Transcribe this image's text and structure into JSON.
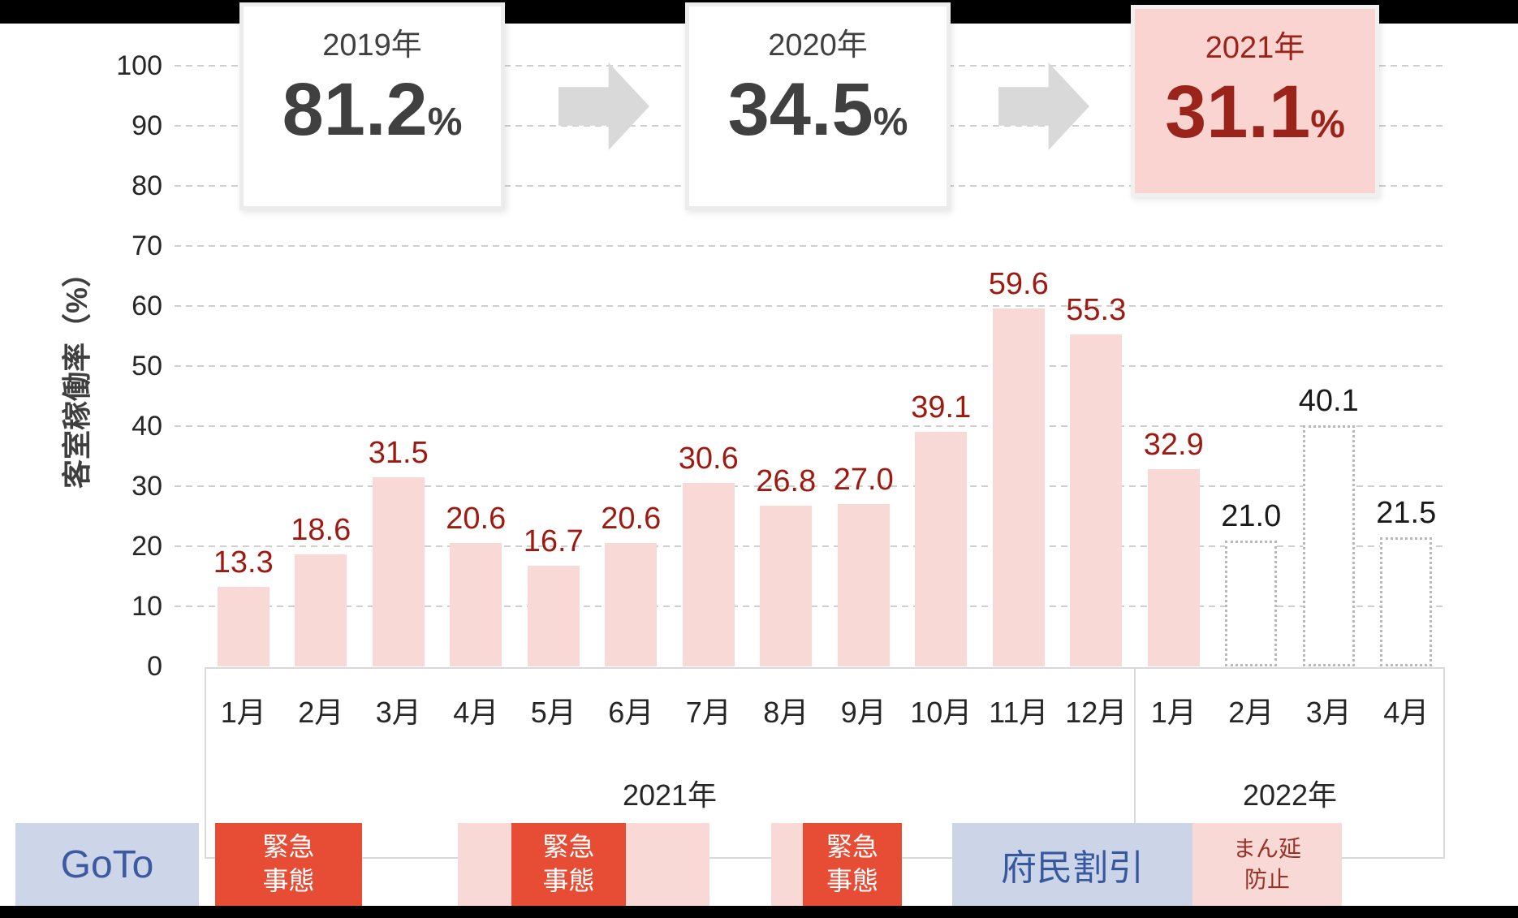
{
  "summary_boxes": [
    {
      "year": "2019年",
      "value": "81.2",
      "unit": "%",
      "variant": "plain"
    },
    {
      "year": "2020年",
      "value": "34.5",
      "unit": "%",
      "variant": "plain"
    },
    {
      "year": "2021年",
      "value": "31.1",
      "unit": "%",
      "variant": "highlight"
    }
  ],
  "y_axis": {
    "title": "客室稼働率（%）",
    "ticks": [
      "0",
      "10",
      "20",
      "30",
      "40",
      "50",
      "60",
      "70",
      "80",
      "90",
      "100"
    ]
  },
  "x_axis": {
    "groups": [
      {
        "label": "2021年",
        "months": [
          "1月",
          "2月",
          "3月",
          "4月",
          "5月",
          "6月",
          "7月",
          "8月",
          "9月",
          "10月",
          "11月",
          "12月"
        ]
      },
      {
        "label": "2022年",
        "months": [
          "1月",
          "2月",
          "3月",
          "4月"
        ]
      }
    ]
  },
  "chart_data": {
    "type": "bar",
    "categories": [
      "2021年1月",
      "2021年2月",
      "2021年3月",
      "2021年4月",
      "2021年5月",
      "2021年6月",
      "2021年7月",
      "2021年8月",
      "2021年9月",
      "2021年10月",
      "2021年11月",
      "2021年12月",
      "2022年1月",
      "2022年2月",
      "2022年3月",
      "2022年4月"
    ],
    "values": [
      13.3,
      18.6,
      31.5,
      20.6,
      16.7,
      20.6,
      30.6,
      26.8,
      27.0,
      39.1,
      59.6,
      55.3,
      32.9,
      21.0,
      40.1,
      21.5
    ],
    "value_labels": [
      "13.3",
      "18.6",
      "31.5",
      "20.6",
      "16.7",
      "20.6",
      "30.6",
      "26.8",
      "27.0",
      "39.1",
      "59.6",
      "55.3",
      "32.9",
      "21.0",
      "40.1",
      "21.5"
    ],
    "bar_styles": [
      "solid",
      "solid",
      "solid",
      "solid",
      "solid",
      "solid",
      "solid",
      "solid",
      "solid",
      "solid",
      "solid",
      "solid",
      "solid",
      "outline",
      "outline",
      "outline"
    ],
    "label_colors": [
      "red",
      "red",
      "red",
      "red",
      "red",
      "red",
      "red",
      "red",
      "red",
      "red",
      "red",
      "red",
      "red",
      "black",
      "black",
      "black"
    ],
    "ylabel": "客室稼働率（%）",
    "ylim": [
      0,
      100
    ],
    "grid": "horizontal dashed, every 10",
    "legend": "none",
    "yearly_summary": [
      {
        "label": "2019年",
        "value": 81.2
      },
      {
        "label": "2020年",
        "value": 34.5
      },
      {
        "label": "2021年",
        "value": 31.1
      }
    ]
  },
  "annotations": [
    {
      "id": "goto",
      "label": "GoTo",
      "style": "goto"
    },
    {
      "id": "emergency-1",
      "label": "緊急\n事態",
      "style": "red"
    },
    {
      "id": "pink-strip-1",
      "label": "",
      "style": "pink"
    },
    {
      "id": "emergency-2",
      "label": "緊急\n事態",
      "style": "red"
    },
    {
      "id": "pink-strip-2",
      "label": "",
      "style": "pink"
    },
    {
      "id": "emergency-3",
      "label": "緊急\n事態",
      "style": "red"
    },
    {
      "id": "fumin-waribiki",
      "label": "府民割引",
      "style": "blue"
    },
    {
      "id": "manen-boshi",
      "label": "まん延\n防止",
      "style": "pink-text"
    }
  ],
  "colors": {
    "bar_fill": "#f8d9d5",
    "bar_label": "#9e1a10",
    "outline_bar_border": "#b8b8b8",
    "forecast_label": "#1a1a1a",
    "emergency_box": "#e74c35",
    "pink_strip": "#f8d9d5",
    "goto_box": "#cdd5e9",
    "discount_box": "#ccd4e8",
    "blue_text": "#35589e",
    "manbo_text": "#993226",
    "highlight_bg": "#f9d4d0",
    "highlight_text": "#9a241a",
    "summary_text": "#404040",
    "arrow": "#d9d9d9",
    "gridline": "#cfcfcf"
  }
}
